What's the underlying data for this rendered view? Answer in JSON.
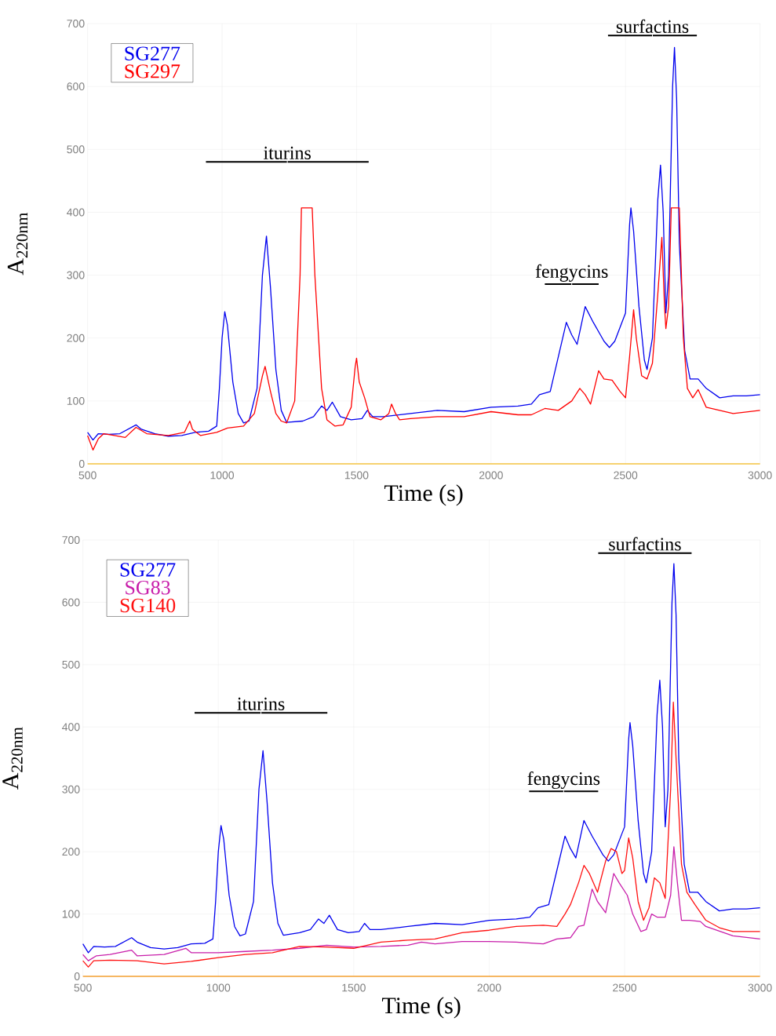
{
  "chart_data": [
    {
      "type": "line",
      "xlabel": "Time (s)",
      "ylabel": "A$_{220nm}$",
      "xlim": [
        500,
        3000
      ],
      "ylim": [
        0,
        700
      ],
      "xticks": [
        500,
        1000,
        1500,
        2000,
        2500,
        3000
      ],
      "yticks": [
        0,
        100,
        200,
        300,
        400,
        500,
        600,
        700
      ],
      "grid": true,
      "legend": "top left",
      "line_style": "solid",
      "annotations": [
        "iturins",
        "fengycins",
        "surfactins"
      ],
      "series": [
        {
          "name": "SG277",
          "color": "#0000ee",
          "x": [
            500,
            520,
            540,
            580,
            620,
            680,
            700,
            750,
            800,
            850,
            900,
            950,
            980,
            990,
            1000,
            1010,
            1020,
            1040,
            1060,
            1080,
            1100,
            1130,
            1150,
            1165,
            1180,
            1200,
            1220,
            1240,
            1300,
            1340,
            1370,
            1390,
            1410,
            1440,
            1480,
            1520,
            1540,
            1560,
            1600,
            1700,
            1800,
            1900,
            2000,
            2100,
            2150,
            2180,
            2220,
            2250,
            2280,
            2300,
            2320,
            2350,
            2380,
            2420,
            2440,
            2460,
            2500,
            2515,
            2520,
            2530,
            2550,
            2570,
            2580,
            2600,
            2620,
            2630,
            2640,
            2650,
            2660,
            2675,
            2682,
            2690,
            2700,
            2720,
            2740,
            2770,
            2800,
            2850,
            2900,
            2950,
            3000
          ],
          "values": [
            50,
            38,
            48,
            47,
            48,
            62,
            55,
            48,
            44,
            45,
            50,
            52,
            60,
            120,
            200,
            242,
            220,
            130,
            80,
            65,
            68,
            120,
            300,
            362,
            280,
            150,
            85,
            66,
            68,
            75,
            92,
            85,
            98,
            75,
            70,
            72,
            85,
            75,
            75,
            80,
            85,
            83,
            90,
            92,
            95,
            110,
            115,
            170,
            225,
            205,
            190,
            250,
            225,
            195,
            185,
            195,
            240,
            380,
            407,
            370,
            250,
            165,
            150,
            200,
            420,
            475,
            400,
            240,
            300,
            600,
            662,
            580,
            350,
            180,
            135,
            135,
            120,
            105,
            108,
            108,
            110
          ]
        },
        {
          "name": "SG297",
          "color": "#ff0000",
          "x": [
            500,
            520,
            540,
            560,
            600,
            640,
            680,
            720,
            800,
            860,
            880,
            890,
            920,
            980,
            1020,
            1080,
            1120,
            1150,
            1160,
            1180,
            1200,
            1220,
            1240,
            1270,
            1290,
            1295,
            1335,
            1345,
            1370,
            1390,
            1420,
            1450,
            1480,
            1495,
            1500,
            1510,
            1530,
            1550,
            1590,
            1620,
            1630,
            1645,
            1660,
            1700,
            1800,
            1900,
            2000,
            2100,
            2150,
            2200,
            2250,
            2300,
            2330,
            2350,
            2370,
            2400,
            2420,
            2450,
            2480,
            2500,
            2515,
            2530,
            2540,
            2560,
            2580,
            2600,
            2620,
            2635,
            2645,
            2650,
            2660,
            2670,
            2700,
            2715,
            2730,
            2750,
            2770,
            2800,
            2850,
            2900,
            3000
          ],
          "values": [
            45,
            22,
            40,
            48,
            45,
            42,
            58,
            48,
            45,
            50,
            68,
            55,
            45,
            50,
            57,
            60,
            80,
            140,
            155,
            115,
            80,
            68,
            65,
            100,
            300,
            407,
            407,
            300,
            120,
            70,
            60,
            62,
            90,
            155,
            168,
            130,
            105,
            75,
            70,
            80,
            95,
            80,
            70,
            72,
            75,
            75,
            83,
            78,
            78,
            88,
            85,
            100,
            120,
            110,
            95,
            148,
            135,
            133,
            115,
            105,
            170,
            245,
            200,
            140,
            135,
            160,
            270,
            360,
            250,
            215,
            250,
            407,
            407,
            200,
            120,
            105,
            118,
            90,
            85,
            80,
            85
          ]
        }
      ]
    },
    {
      "type": "line",
      "xlabel": "Time (s)",
      "ylabel": "A$_{220nm}$",
      "xlim": [
        500,
        3000
      ],
      "ylim": [
        0,
        700
      ],
      "xticks": [
        500,
        1000,
        1500,
        2000,
        2500,
        3000
      ],
      "yticks": [
        0,
        100,
        200,
        300,
        400,
        500,
        600,
        700
      ],
      "grid": true,
      "legend": "top left",
      "line_style": "solid",
      "annotations": [
        "iturins",
        "fengycins",
        "surfactins"
      ],
      "series": [
        {
          "name": "SG277",
          "color": "#0000ee",
          "x": [
            500,
            520,
            540,
            580,
            620,
            680,
            700,
            750,
            800,
            850,
            900,
            950,
            980,
            990,
            1000,
            1010,
            1020,
            1040,
            1060,
            1080,
            1100,
            1130,
            1150,
            1165,
            1180,
            1200,
            1220,
            1240,
            1300,
            1340,
            1370,
            1390,
            1410,
            1440,
            1480,
            1520,
            1540,
            1560,
            1600,
            1700,
            1800,
            1900,
            2000,
            2100,
            2150,
            2180,
            2220,
            2250,
            2280,
            2300,
            2320,
            2350,
            2380,
            2420,
            2440,
            2460,
            2500,
            2515,
            2520,
            2530,
            2550,
            2570,
            2580,
            2600,
            2620,
            2630,
            2640,
            2650,
            2660,
            2675,
            2682,
            2690,
            2700,
            2720,
            2740,
            2770,
            2800,
            2850,
            2900,
            2950,
            3000
          ],
          "values": [
            52,
            38,
            48,
            47,
            48,
            62,
            55,
            46,
            44,
            46,
            52,
            53,
            60,
            120,
            200,
            242,
            220,
            130,
            80,
            65,
            68,
            120,
            300,
            362,
            280,
            150,
            85,
            66,
            70,
            75,
            92,
            85,
            98,
            75,
            70,
            72,
            85,
            75,
            75,
            80,
            85,
            83,
            90,
            92,
            95,
            110,
            115,
            170,
            225,
            205,
            190,
            250,
            225,
            195,
            185,
            195,
            240,
            380,
            407,
            370,
            250,
            165,
            150,
            200,
            420,
            475,
            400,
            240,
            300,
            600,
            662,
            580,
            350,
            180,
            135,
            135,
            120,
            105,
            108,
            108,
            110
          ]
        },
        {
          "name": "SG83",
          "color": "#c81eaa",
          "x": [
            500,
            520,
            550,
            600,
            680,
            700,
            800,
            880,
            900,
            1000,
            1100,
            1200,
            1300,
            1400,
            1500,
            1600,
            1700,
            1750,
            1800,
            1900,
            2000,
            2100,
            2200,
            2250,
            2300,
            2330,
            2350,
            2380,
            2400,
            2430,
            2460,
            2480,
            2510,
            2530,
            2560,
            2580,
            2600,
            2620,
            2650,
            2670,
            2682,
            2695,
            2710,
            2740,
            2780,
            2800,
            2900,
            3000
          ],
          "values": [
            35,
            25,
            33,
            35,
            42,
            33,
            35,
            45,
            38,
            38,
            40,
            42,
            45,
            50,
            47,
            48,
            50,
            55,
            52,
            56,
            56,
            55,
            52,
            60,
            62,
            80,
            82,
            140,
            120,
            102,
            165,
            150,
            130,
            100,
            72,
            75,
            100,
            95,
            95,
            130,
            208,
            150,
            90,
            90,
            88,
            80,
            65,
            60
          ]
        },
        {
          "name": "SG140",
          "color": "#ff1010",
          "x": [
            500,
            520,
            540,
            600,
            700,
            800,
            900,
            1000,
            1100,
            1200,
            1300,
            1400,
            1500,
            1600,
            1700,
            1800,
            1900,
            2000,
            2100,
            2200,
            2250,
            2280,
            2300,
            2330,
            2350,
            2370,
            2400,
            2430,
            2450,
            2470,
            2490,
            2500,
            2515,
            2530,
            2550,
            2570,
            2590,
            2610,
            2630,
            2650,
            2670,
            2680,
            2690,
            2710,
            2730,
            2760,
            2800,
            2850,
            2900,
            3000
          ],
          "values": [
            25,
            15,
            25,
            26,
            25,
            20,
            24,
            30,
            35,
            38,
            48,
            47,
            45,
            55,
            58,
            60,
            70,
            74,
            80,
            82,
            80,
            100,
            115,
            150,
            178,
            165,
            135,
            185,
            205,
            200,
            165,
            170,
            222,
            190,
            120,
            90,
            110,
            158,
            150,
            125,
            300,
            440,
            350,
            180,
            135,
            115,
            90,
            78,
            72,
            72
          ]
        }
      ]
    }
  ]
}
